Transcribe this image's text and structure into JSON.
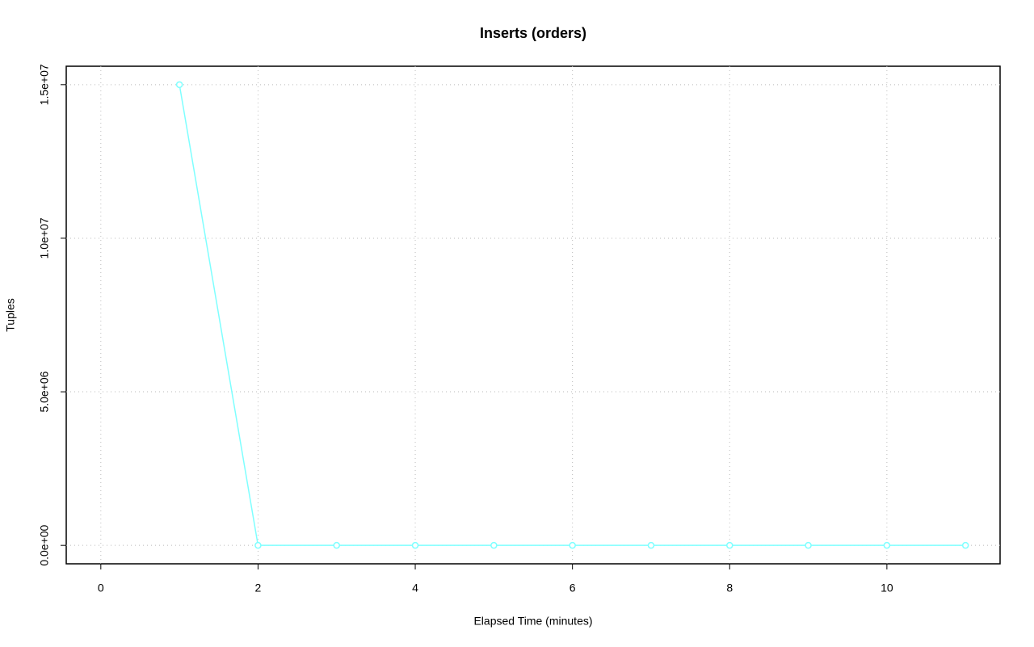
{
  "chart_data": {
    "type": "line",
    "title": "Inserts (orders)",
    "x_label": "Elapsed Time (minutes)",
    "y_label": "Tuples",
    "x": [
      1,
      2,
      3,
      4,
      5,
      6,
      7,
      8,
      9,
      10,
      11
    ],
    "values": [
      15000000,
      0,
      0,
      0,
      0,
      0,
      0,
      0,
      0,
      0,
      0
    ],
    "color": "#7fffff",
    "xlim": [
      -0.44,
      11.44
    ],
    "xticks": [
      0,
      2,
      4,
      6,
      8,
      10
    ],
    "ylim": [
      -600000,
      15600000
    ],
    "yticks": [
      {
        "value": 0,
        "label": "0.0e+00"
      },
      {
        "value": 5000000,
        "label": "5.0e+06"
      },
      {
        "value": 10000000,
        "label": "1.0e+07"
      },
      {
        "value": 15000000,
        "label": "1.5e+07"
      }
    ],
    "grid": true
  }
}
